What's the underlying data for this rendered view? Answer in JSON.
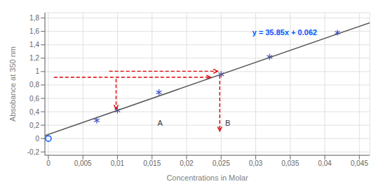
{
  "chart_data": {
    "type": "scatter",
    "xlabel": "Concentrations in Molar",
    "ylabel": "Absobance at 350 nm",
    "grid": true,
    "xlim": [
      -0.0005,
      0.0465
    ],
    "ylim": [
      -0.25,
      1.88
    ],
    "xticks": [
      0,
      {
        "value": 0.005,
        "label": "0,005"
      },
      {
        "value": 0.01,
        "label": "0,01"
      },
      {
        "value": 0.015,
        "label": "0,015"
      },
      {
        "value": 0.02,
        "label": "0,02"
      },
      {
        "value": 0.025,
        "label": "0,025"
      },
      {
        "value": 0.03,
        "label": "0,03"
      },
      {
        "value": 0.035,
        "label": "0,035"
      },
      {
        "value": 0.04,
        "label": "0,04"
      },
      {
        "value": 0.045,
        "label": "0,045"
      }
    ],
    "yticks": [
      {
        "value": -0.2,
        "label": "-0,2"
      },
      0,
      {
        "value": 0.2,
        "label": "0,2"
      },
      {
        "value": 0.4,
        "label": "0,4"
      },
      {
        "value": 0.6,
        "label": "0,6"
      },
      {
        "value": 0.8,
        "label": "0,8"
      },
      1,
      {
        "value": 1.2,
        "label": "1,2"
      },
      {
        "value": 1.4,
        "label": "1,4"
      },
      {
        "value": 1.6,
        "label": "1,6"
      },
      {
        "value": 1.8,
        "label": "1,8"
      }
    ],
    "series": [
      {
        "type": "scatter",
        "marker": "asterisk",
        "x": [
          0.007,
          0.01,
          0.016,
          0.025,
          0.032
        ],
        "values": [
          0.273,
          0.42,
          0.69,
          0.96,
          1.22
        ]
      },
      {
        "type": "line",
        "x": [
          -0.0005,
          0.0465
        ],
        "values": [
          0.044075,
          1.729025
        ]
      }
    ],
    "annotations": [
      {
        "text": "y = 35.85x + 0.062",
        "x": 0.0295,
        "y": 1.54,
        "color": "#0055ff",
        "marker": "asterisk"
      },
      {
        "text": "A",
        "x": 0.0158,
        "y": 0.195
      },
      {
        "text": "B",
        "x": 0.0256,
        "y": 0.195
      }
    ],
    "points": [
      {
        "x": 0.0,
        "y": 0.0,
        "color": "#0055ff",
        "marker": "circle"
      }
    ],
    "arrows": [
      {
        "x1": 0.0088,
        "y1": 1.005,
        "x2": 0.0245,
        "y2": 1.005,
        "color": "#dd0000",
        "line_style": "dashed"
      },
      {
        "x1": 0.0008,
        "y1": 0.915,
        "x2": 0.0235,
        "y2": 0.915,
        "color": "#dd0000",
        "line_style": "dashed"
      },
      {
        "x1": 0.0098,
        "y1": 0.89,
        "x2": 0.0098,
        "y2": 0.435,
        "color": "#dd0000",
        "line_style": "dashed"
      },
      {
        "x1": 0.0248,
        "y1": 0.945,
        "x2": 0.0248,
        "y2": 0.11,
        "color": "#dd0000",
        "line_style": "dashed"
      }
    ]
  }
}
